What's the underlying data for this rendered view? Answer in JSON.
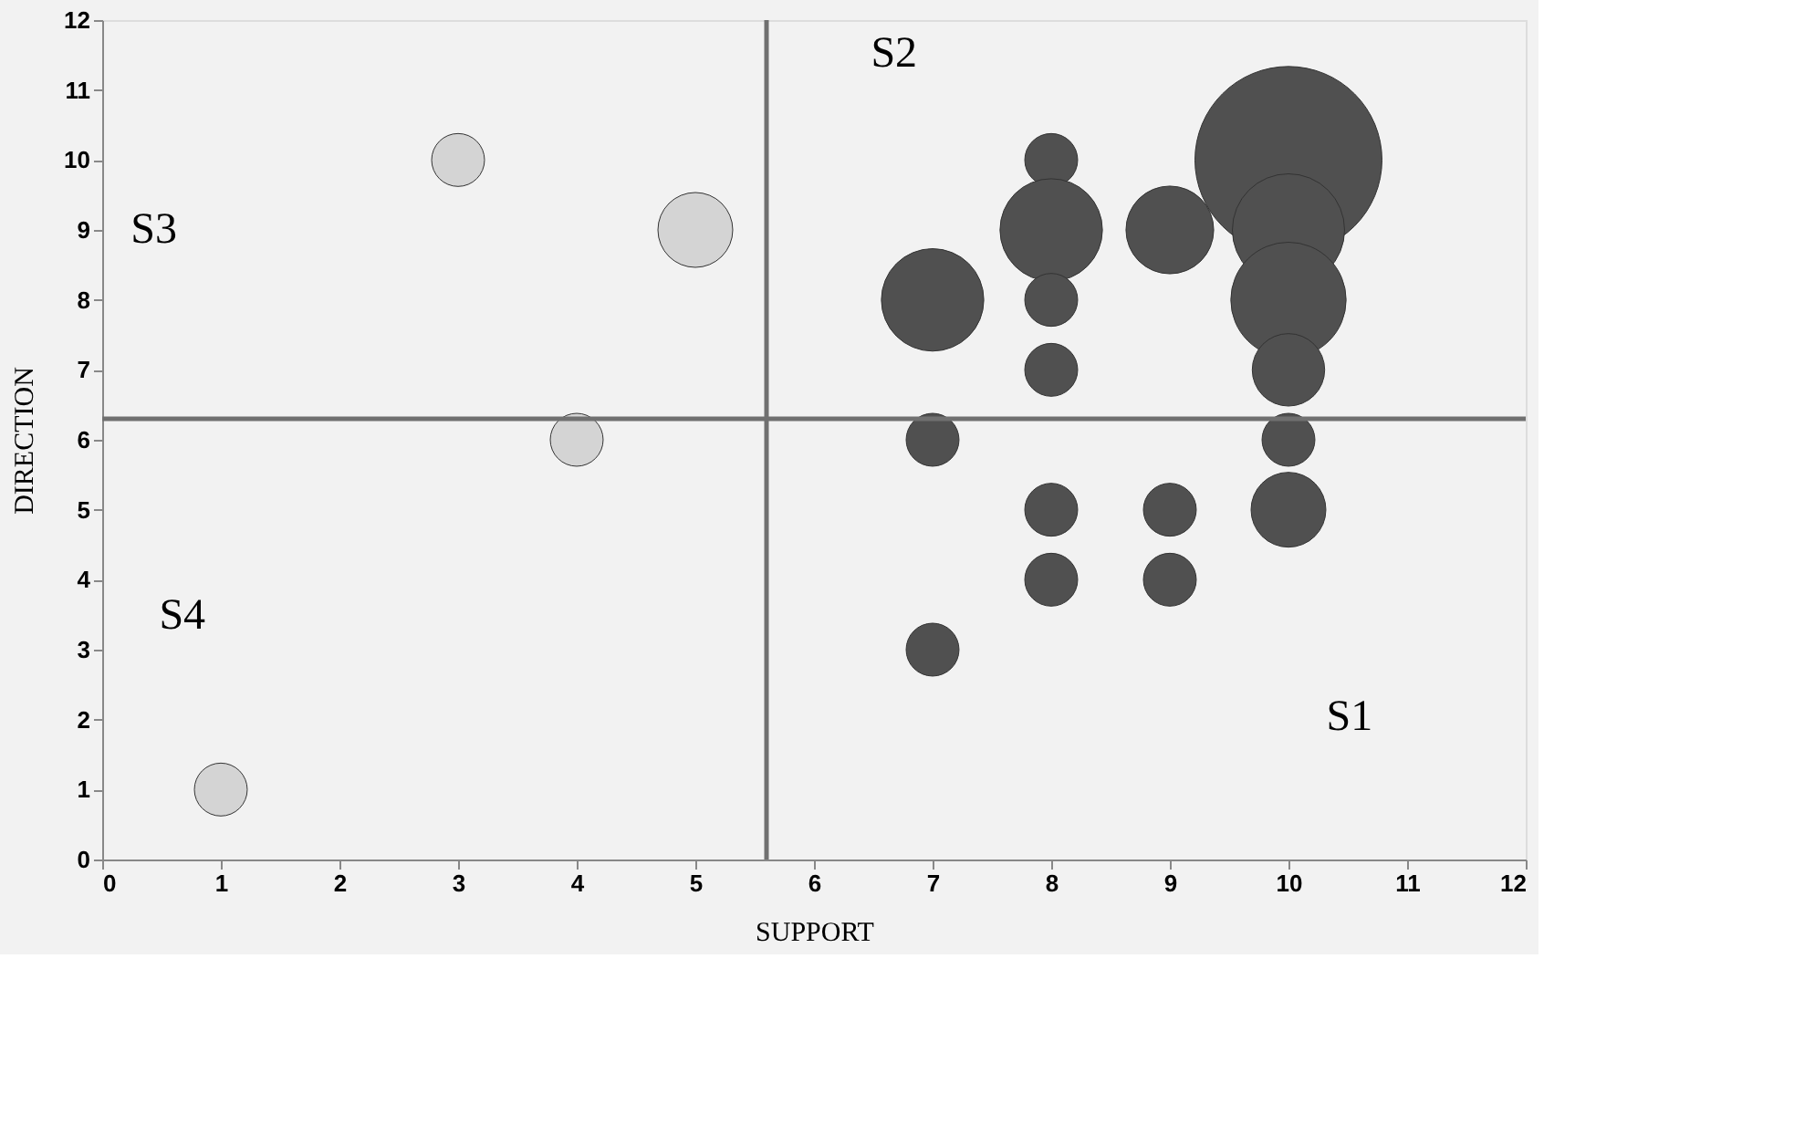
{
  "chart_data": {
    "type": "bubble",
    "xlabel": "SUPPORT",
    "ylabel": "DIRECTION",
    "xlim": [
      0,
      12
    ],
    "ylim": [
      0,
      12
    ],
    "xticks": [
      0,
      1,
      2,
      3,
      4,
      5,
      6,
      7,
      8,
      9,
      10,
      11,
      12
    ],
    "yticks": [
      0,
      1,
      2,
      3,
      4,
      5,
      6,
      7,
      8,
      9,
      10,
      11,
      12
    ],
    "grid": false,
    "series": [
      {
        "color": "#d4d4d4",
        "x": [
          1,
          3,
          4,
          5
        ],
        "values": [
          1,
          10,
          6,
          9
        ],
        "sizes": [
          0.08,
          0.08,
          0.08,
          0.16
        ]
      },
      {
        "color": "#505050",
        "x": [
          7,
          7,
          7,
          8,
          8,
          8,
          8,
          8,
          8,
          9,
          9,
          9,
          10,
          10,
          10,
          10,
          10,
          10
        ],
        "values": [
          8,
          6,
          3,
          10,
          9,
          8,
          7,
          5,
          4,
          9,
          5,
          4,
          10,
          9,
          8,
          7,
          6,
          5
        ],
        "sizes": [
          0.3,
          0.08,
          0.08,
          0.08,
          0.3,
          0.08,
          0.08,
          0.08,
          0.08,
          0.22,
          0.08,
          0.08,
          1,
          0.36,
          0.38,
          0.15,
          0.08,
          0.16
        ]
      }
    ],
    "ref_lines": [
      {
        "axis": "x",
        "value": 5.6,
        "color": "#707070"
      },
      {
        "axis": "y",
        "value": 6.3,
        "color": "#707070"
      }
    ],
    "annotations": [
      "S2",
      "S3",
      "S4",
      "S1"
    ]
  }
}
